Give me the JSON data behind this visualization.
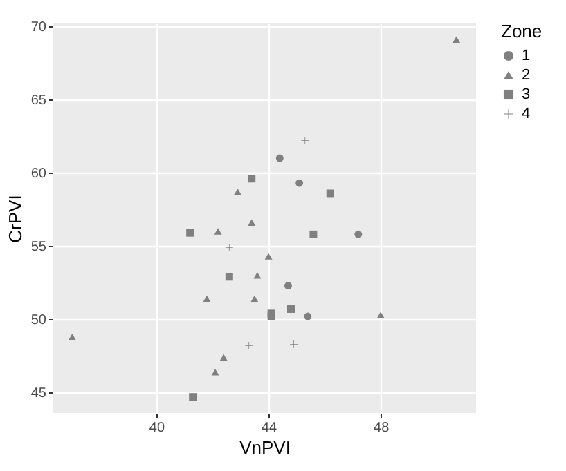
{
  "chart_data": {
    "type": "scatter",
    "xlabel": "VnPVI",
    "ylabel": "CrPVI",
    "legend_title": "Zone",
    "xlim": [
      36.3,
      51.4
    ],
    "ylim": [
      43.6,
      70.2
    ],
    "xticks": [
      40,
      44,
      48
    ],
    "yticks": [
      45,
      50,
      55,
      60,
      65,
      70
    ],
    "grid": true,
    "legend": "right",
    "series": [
      {
        "name": "1",
        "color": "#808080",
        "marker": "circle",
        "x": [
          44.4,
          45.1,
          44.7,
          45.4,
          47.2
        ],
        "values": [
          61.0,
          59.3,
          52.3,
          50.2,
          55.8
        ]
      },
      {
        "name": "2",
        "color": "#808080",
        "marker": "triangle",
        "x": [
          50.7,
          42.9,
          43.4,
          42.2,
          44.0,
          43.6,
          41.8,
          43.5,
          37.0,
          42.4,
          42.1,
          48.0
        ],
        "values": [
          69.1,
          58.7,
          56.6,
          56.0,
          54.3,
          53.0,
          51.4,
          51.4,
          48.8,
          47.4,
          46.4,
          50.3
        ]
      },
      {
        "name": "3",
        "color": "#808080",
        "marker": "square",
        "x": [
          43.4,
          41.2,
          46.2,
          45.6,
          42.6,
          44.1,
          44.1,
          44.8,
          41.3
        ],
        "values": [
          59.6,
          55.9,
          58.6,
          55.8,
          52.9,
          50.4,
          50.2,
          50.7,
          44.7
        ]
      },
      {
        "name": "4",
        "color": "#808080",
        "marker": "cross",
        "x": [
          45.3,
          42.6,
          43.3,
          44.9
        ],
        "values": [
          62.2,
          54.9,
          48.2,
          48.3
        ]
      }
    ]
  }
}
